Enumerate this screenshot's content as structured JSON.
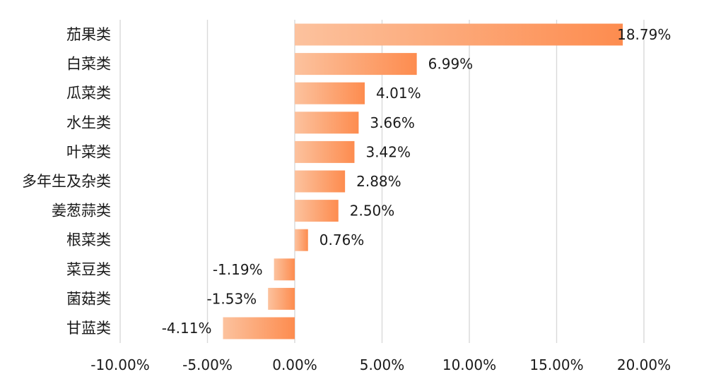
{
  "chart_data": {
    "type": "bar",
    "orientation": "horizontal",
    "title": "",
    "xlabel": "",
    "ylabel": "",
    "categories": [
      "茄果类",
      "白菜类",
      "瓜菜类",
      "水生类",
      "叶菜类",
      "多年生及杂类",
      "姜葱蒜类",
      "根菜类",
      "菜豆类",
      "菌菇类",
      "甘蓝类"
    ],
    "values": [
      18.79,
      6.99,
      4.01,
      3.66,
      3.42,
      2.88,
      2.5,
      0.76,
      -1.19,
      -1.53,
      -4.11
    ],
    "value_labels": [
      "18.79%",
      "6.99%",
      "4.01%",
      "3.66%",
      "3.42%",
      "2.88%",
      "2.50%",
      "0.76%",
      "-1.19%",
      "-1.53%",
      "-4.11%"
    ],
    "xlim": [
      -10,
      20
    ],
    "x_ticks": [
      -10,
      -5,
      0,
      5,
      10,
      15,
      20
    ],
    "x_tick_labels": [
      "-10.00%",
      "-5.00%",
      "0.00%",
      "5.00%",
      "10.00%",
      "15.00%",
      "20.00%"
    ],
    "grid": "vertical",
    "legend": "none",
    "bar_gradient": [
      "#fcc29e",
      "#fd8c4f"
    ],
    "gridline_color": "#d9d9d9"
  }
}
